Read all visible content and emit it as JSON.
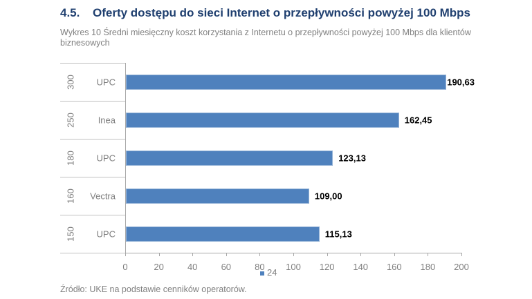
{
  "heading": {
    "number": "4.5.",
    "title": "Oferty dostępu do sieci Internet o przepływności powyżej 100 Mbps"
  },
  "caption": "Wykres 10 Średni miesięczny koszt korzystania z Internetu o przepływności powyżej 100 Mbps dla klientów biznesowych",
  "source": "Źródło: UKE na podstawie cenników operatorów.",
  "colors": {
    "bar": "#4f81bd",
    "heading": "#1f3f6f",
    "text_gray": "#808080"
  },
  "chart_data": {
    "type": "bar",
    "orientation": "horizontal",
    "title": "Średni miesięczny koszt korzystania z Internetu o przepływności powyżej 100 Mbps dla klientów biznesowych",
    "categories": [
      {
        "speed": "300",
        "operator": "UPC"
      },
      {
        "speed": "250",
        "operator": "Inea"
      },
      {
        "speed": "180",
        "operator": "UPC"
      },
      {
        "speed": "160",
        "operator": "Vectra"
      },
      {
        "speed": "150",
        "operator": "UPC"
      }
    ],
    "series": [
      {
        "name": "24",
        "values": [
          190.63,
          162.45,
          123.13,
          109.0,
          115.13
        ],
        "labels": [
          "190,63",
          "162,45",
          "123,13",
          "109,00",
          "115,13"
        ]
      }
    ],
    "xlim": [
      0,
      200
    ],
    "xticks": [
      "0",
      "20",
      "40",
      "60",
      "80",
      "100",
      "120",
      "140",
      "160",
      "180",
      "200"
    ],
    "xlabel": "",
    "ylabel": "",
    "grid": false,
    "legend": {
      "position": "bottom",
      "entries": [
        "24"
      ]
    }
  }
}
